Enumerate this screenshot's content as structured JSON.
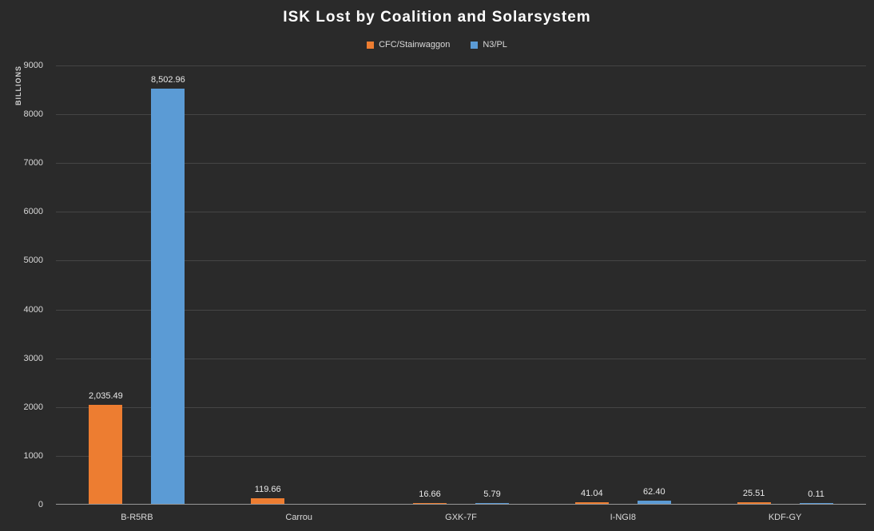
{
  "title": "ISK Lost by Coalition and Solarsystem",
  "chart_data": {
    "type": "bar",
    "title": "ISK Lost by Coalition and Solarsystem",
    "xlabel": "",
    "ylabel": "BILLIONS",
    "ylim": [
      0,
      9000
    ],
    "ytick_step": 1000,
    "grid": true,
    "legend_position": "top",
    "background": "#2a2a2a",
    "categories": [
      "B-R5RB",
      "Carrou",
      "GXK-7F",
      "I-NGI8",
      "KDF-GY"
    ],
    "series": [
      {
        "name": "CFC/Stainwaggon",
        "color": "#ED7D31",
        "values": [
          2035.49,
          119.66,
          16.66,
          41.04,
          25.51
        ],
        "labels": [
          "2,035.49",
          "119.66",
          "16.66",
          "41.04",
          "25.51"
        ]
      },
      {
        "name": "N3/PL",
        "color": "#5B9BD5",
        "values": [
          8502.96,
          null,
          5.79,
          62.4,
          0.11
        ],
        "labels": [
          "8,502.96",
          null,
          "5.79",
          "62.40",
          "0.11"
        ]
      }
    ]
  }
}
